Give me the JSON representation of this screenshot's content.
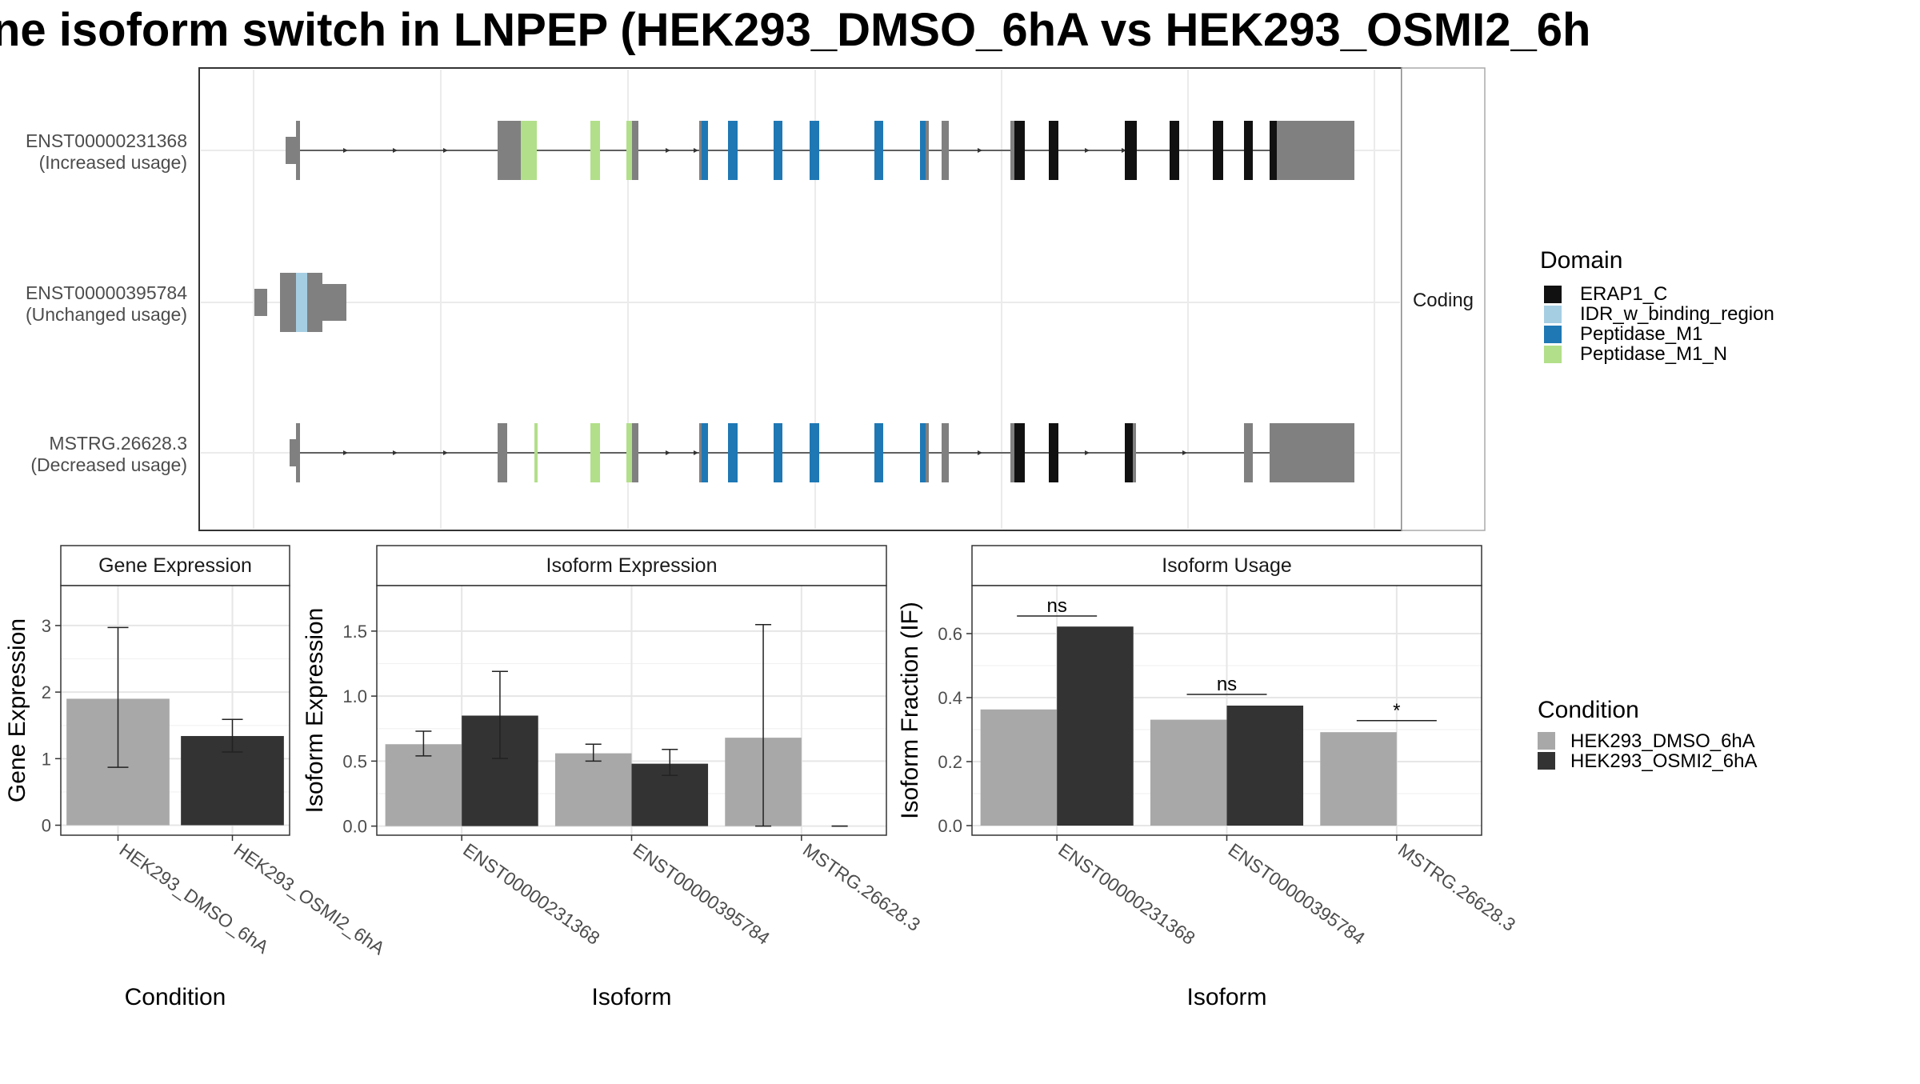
{
  "title": "ne isoform switch in LNPEP (HEK293_DMSO_6hA vs HEK293_OSMI2_6h",
  "colors": {
    "utr": "#808080",
    "condition": {
      "HEK293_DMSO_6hA": "#A8A8A8",
      "HEK293_OSMI2_6hA": "#333333"
    },
    "domain": {
      "ERAP1_C": "#111111",
      "IDR_w_binding_region": "#A6CEE3",
      "Peptidase_M1": "#1F78B4",
      "Peptidase_M1_N": "#B2DF8A"
    }
  },
  "chart_data": [
    {
      "type": "gene-structure",
      "facet_label": "Coding",
      "transcripts": [
        {
          "id": "ENST00000231368",
          "usage": "(Increased usage)"
        },
        {
          "id": "ENST00000395784",
          "usage": "(Unchanged usage)"
        },
        {
          "id": "MSTRG.26628.3",
          "usage": "(Decreased usage)"
        }
      ],
      "legend": {
        "title": "Domain",
        "entries": [
          "ERAP1_C",
          "IDR_w_binding_region",
          "Peptidase_M1",
          "Peptidase_M1_N"
        ]
      }
    },
    {
      "type": "bar",
      "title": "Gene Expression",
      "xlabel": "Condition",
      "ylabel": "Gene Expression",
      "ylim": [
        -0.15,
        3.6
      ],
      "yticks": [
        0,
        1,
        2,
        3
      ],
      "categories": [
        "HEK293_DMSO_6hA",
        "HEK293_OSMI2_6hA"
      ],
      "values": [
        1.9,
        1.34
      ],
      "error_low": [
        0.87,
        1.1
      ],
      "error_high": [
        2.97,
        1.59
      ]
    },
    {
      "type": "bar",
      "title": "Isoform Expression",
      "xlabel": "Isoform",
      "ylabel": "Isoform Expression",
      "ylim": [
        -0.07,
        1.85
      ],
      "yticks": [
        0.0,
        0.5,
        1.0,
        1.5
      ],
      "ytick_labels": [
        "0.0",
        "0.5",
        "1.0",
        "1.5"
      ],
      "categories": [
        "ENST00000231368",
        "ENST00000395784",
        "MSTRG.26628.3"
      ],
      "series": [
        {
          "name": "HEK293_DMSO_6hA",
          "values": [
            0.63,
            0.56,
            0.68
          ],
          "error_low": [
            0.54,
            0.5,
            0.0
          ],
          "error_high": [
            0.73,
            0.63,
            1.55
          ]
        },
        {
          "name": "HEK293_OSMI2_6hA",
          "values": [
            0.85,
            0.48,
            0.0
          ],
          "error_low": [
            0.52,
            0.39,
            0.0
          ],
          "error_high": [
            1.19,
            0.59,
            0.0
          ]
        }
      ]
    },
    {
      "type": "bar",
      "title": "Isoform Usage",
      "xlabel": "Isoform",
      "ylabel": "Isoform Fraction (IF)",
      "ylim": [
        -0.03,
        0.75
      ],
      "yticks": [
        0.0,
        0.2,
        0.4,
        0.6
      ],
      "ytick_labels": [
        "0.0",
        "0.2",
        "0.4",
        "0.6"
      ],
      "categories": [
        "ENST00000231368",
        "ENST00000395784",
        "MSTRG.26628.3"
      ],
      "series": [
        {
          "name": "HEK293_DMSO_6hA",
          "values": [
            0.363,
            0.331,
            0.292
          ]
        },
        {
          "name": "HEK293_OSMI2_6hA",
          "values": [
            0.622,
            0.375,
            0.0
          ]
        }
      ],
      "significance": [
        {
          "label": "ns",
          "y": 0.655
        },
        {
          "label": "ns",
          "y": 0.41
        },
        {
          "label": "*",
          "y": 0.328
        }
      ]
    }
  ],
  "condition_legend": {
    "title": "Condition",
    "entries": [
      "HEK293_DMSO_6hA",
      "HEK293_OSMI2_6hA"
    ]
  }
}
